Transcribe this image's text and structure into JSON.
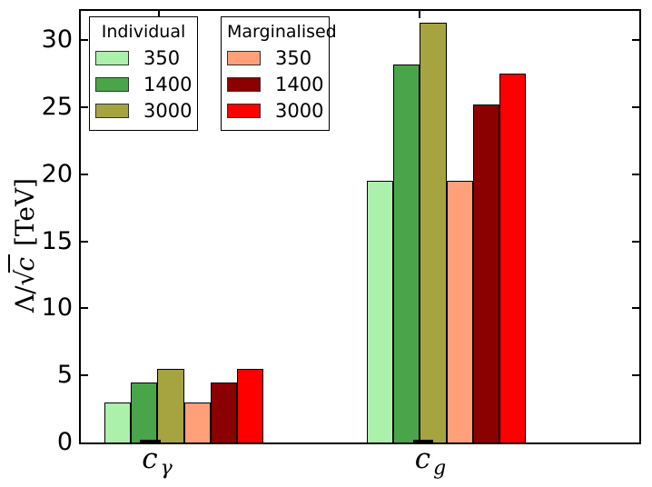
{
  "figure": {
    "background": "#ffffff",
    "frame_color": "#000000"
  },
  "y_axis": {
    "label": "Λ/√c [TeV]",
    "label_parts": {
      "prefix": "Λ/",
      "radical": "√",
      "variable": "c",
      "unit": " [TeV]"
    }
  },
  "x_axis": {
    "categories": [
      {
        "label": "c̄_γ",
        "base": "c",
        "subscript": "γ",
        "key": "cgamma"
      },
      {
        "label": "c̄_g",
        "base": "c",
        "subscript": "g",
        "key": "cg"
      }
    ]
  },
  "legends": [
    {
      "title": "Individual",
      "entries": [
        {
          "label": "350",
          "color": "#ABF0AB"
        },
        {
          "label": "1400",
          "color": "#4AA54A"
        },
        {
          "label": "3000",
          "color": "#A5A441"
        }
      ]
    },
    {
      "title": "Marginalised",
      "entries": [
        {
          "label": "350",
          "color": "#FFA078"
        },
        {
          "label": "1400",
          "color": "#8B0000"
        },
        {
          "label": "3000",
          "color": "#FF0000"
        }
      ]
    }
  ],
  "chart_data": {
    "type": "bar",
    "title": "",
    "xlabel": "",
    "ylabel": "Λ/√c [TeV]",
    "categories": [
      "c̄_γ",
      "c̄_g"
    ],
    "series": [
      {
        "group": "Individual",
        "name": "350",
        "color": "#ABF0AB",
        "values": [
          3.0,
          19.5
        ]
      },
      {
        "group": "Individual",
        "name": "1400",
        "color": "#4AA54A",
        "values": [
          4.5,
          28.2
        ]
      },
      {
        "group": "Individual",
        "name": "3000",
        "color": "#A5A441",
        "values": [
          5.5,
          31.3
        ]
      },
      {
        "group": "Marginalised",
        "name": "350",
        "color": "#FFA078",
        "values": [
          3.0,
          19.5
        ]
      },
      {
        "group": "Marginalised",
        "name": "1400",
        "color": "#8B0000",
        "values": [
          4.5,
          25.2
        ]
      },
      {
        "group": "Marginalised",
        "name": "3000",
        "color": "#FF0000",
        "values": [
          5.5,
          27.5
        ]
      }
    ],
    "ylim": [
      0,
      32.2
    ],
    "yticks": [
      0,
      5,
      10,
      15,
      20,
      25,
      30
    ],
    "grid": false,
    "legend_position": "upper left",
    "legend_titles": [
      "Individual",
      "Marginalised"
    ]
  }
}
